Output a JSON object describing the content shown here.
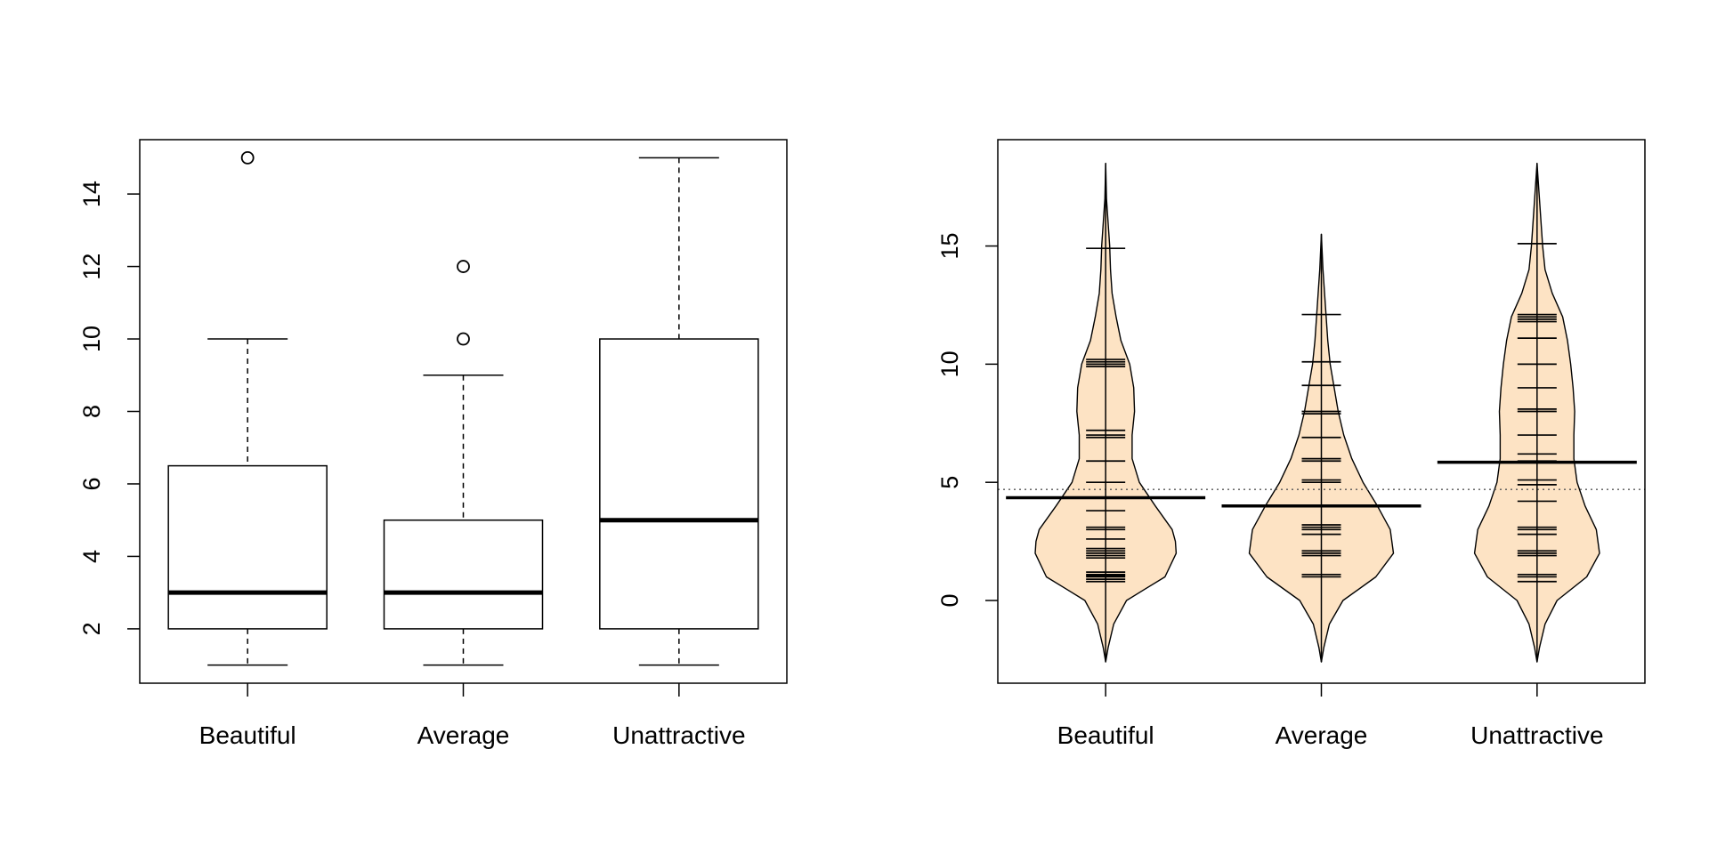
{
  "chart_data": [
    {
      "type": "boxplot",
      "categories": [
        "Beautiful",
        "Average",
        "Unattractive"
      ],
      "ylim": [
        0.5,
        15.5
      ],
      "yticks": [
        "2",
        "4",
        "6",
        "8",
        "10",
        "12",
        "14"
      ],
      "grid": false,
      "boxes": [
        {
          "name": "Beautiful",
          "whisker_low": 1,
          "q1": 2,
          "median": 3,
          "q3": 6.5,
          "whisker_high": 10,
          "outliers": [
            15
          ]
        },
        {
          "name": "Average",
          "whisker_low": 1,
          "q1": 2,
          "median": 3,
          "q3": 5,
          "whisker_high": 9,
          "outliers": [
            10,
            12
          ]
        },
        {
          "name": "Unattractive",
          "whisker_low": 1,
          "q1": 2,
          "median": 5,
          "q3": 10,
          "whisker_high": 15,
          "outliers": []
        }
      ]
    },
    {
      "type": "pirateplot",
      "categories": [
        "Beautiful",
        "Average",
        "Unattractive"
      ],
      "ylim": [
        -3.5,
        19.5
      ],
      "yticks": [
        "0",
        "5",
        "10",
        "15"
      ],
      "grid": false,
      "overall_mean": 4.7,
      "bean_color": "#fde3c4",
      "groups": [
        {
          "name": "Beautiful",
          "mean": 4.35,
          "range": [
            -2.6,
            18.5
          ],
          "points": [
            0.8,
            0.9,
            1,
            1.05,
            1.1,
            1.2,
            1.8,
            1.9,
            2,
            2.1,
            2.2,
            2.6,
            3,
            3.1,
            3.8,
            5,
            5.9,
            6.9,
            7,
            7.2,
            9.9,
            10,
            10.1,
            10.2,
            14.9
          ],
          "density": [
            [
              -2.6,
              0
            ],
            [
              -2,
              0.03
            ],
            [
              -1,
              0.1
            ],
            [
              0,
              0.26
            ],
            [
              0.5,
              0.5
            ],
            [
              1,
              0.74
            ],
            [
              2,
              0.88
            ],
            [
              2.5,
              0.87
            ],
            [
              3,
              0.83
            ],
            [
              4,
              0.62
            ],
            [
              5,
              0.42
            ],
            [
              6,
              0.33
            ],
            [
              7,
              0.33
            ],
            [
              8,
              0.36
            ],
            [
              9,
              0.35
            ],
            [
              10,
              0.3
            ],
            [
              11,
              0.19
            ],
            [
              12,
              0.13
            ],
            [
              13,
              0.08
            ],
            [
              14,
              0.06
            ],
            [
              15,
              0.05
            ],
            [
              16,
              0.03
            ],
            [
              17,
              0.01
            ],
            [
              18.5,
              0
            ]
          ]
        },
        {
          "name": "Average",
          "mean": 4,
          "range": [
            -2.6,
            15.5
          ],
          "points": [
            1,
            1.1,
            1.9,
            2,
            2.1,
            2.8,
            3,
            3.1,
            3.2,
            4,
            5,
            5.1,
            5.9,
            6,
            6.9,
            7.9,
            8,
            9.1,
            10.1,
            12.1
          ],
          "density": [
            [
              -2.6,
              0
            ],
            [
              -2,
              0.03
            ],
            [
              -1,
              0.1
            ],
            [
              0,
              0.27
            ],
            [
              1,
              0.68
            ],
            [
              2,
              0.9
            ],
            [
              3,
              0.86
            ],
            [
              4,
              0.7
            ],
            [
              5,
              0.52
            ],
            [
              6,
              0.38
            ],
            [
              7,
              0.28
            ],
            [
              8,
              0.21
            ],
            [
              9,
              0.16
            ],
            [
              10,
              0.11
            ],
            [
              11,
              0.08
            ],
            [
              12,
              0.06
            ],
            [
              13,
              0.04
            ],
            [
              14,
              0.02
            ],
            [
              15.5,
              0
            ]
          ]
        },
        {
          "name": "Unattractive",
          "mean": 5.85,
          "range": [
            -2.6,
            18.5
          ],
          "points": [
            0.8,
            1,
            1.1,
            1.9,
            2,
            2.1,
            2.8,
            3,
            3.1,
            4.2,
            4.9,
            5.1,
            5.9,
            6.2,
            7,
            8,
            8.1,
            9,
            10,
            11.1,
            11.8,
            11.9,
            12,
            12.1,
            15.1
          ],
          "density": [
            [
              -2.6,
              0
            ],
            [
              -2,
              0.03
            ],
            [
              -1,
              0.1
            ],
            [
              0,
              0.25
            ],
            [
              1,
              0.62
            ],
            [
              2,
              0.78
            ],
            [
              3,
              0.74
            ],
            [
              4,
              0.6
            ],
            [
              5,
              0.5
            ],
            [
              6,
              0.46
            ],
            [
              7,
              0.46
            ],
            [
              8,
              0.47
            ],
            [
              9,
              0.45
            ],
            [
              10,
              0.42
            ],
            [
              11,
              0.38
            ],
            [
              12,
              0.32
            ],
            [
              13,
              0.19
            ],
            [
              14,
              0.1
            ],
            [
              15,
              0.07
            ],
            [
              16,
              0.05
            ],
            [
              17,
              0.03
            ],
            [
              18.5,
              0
            ]
          ]
        }
      ]
    }
  ]
}
